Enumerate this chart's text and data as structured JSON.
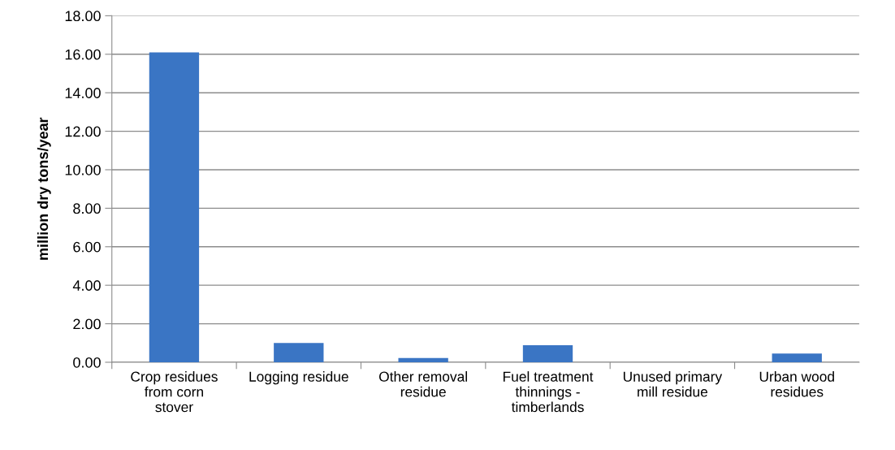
{
  "chart_data": {
    "type": "bar",
    "ylabel": "million dry tons/year",
    "categories": [
      "Crop residues from corn stover",
      "Logging residue",
      "Other removal residue",
      "Fuel treatment thinnings - timberlands",
      "Unused primary mill residue",
      "Urban wood residues"
    ],
    "values": [
      16.1,
      1.0,
      0.22,
      0.88,
      0.0,
      0.45
    ],
    "color": "#3a75c4",
    "ylim": [
      0,
      18
    ],
    "yticks": [
      {
        "value": 0,
        "label": "0.00"
      },
      {
        "value": 2,
        "label": "2.00"
      },
      {
        "value": 4,
        "label": "4.00"
      },
      {
        "value": 6,
        "label": "6.00"
      },
      {
        "value": 8,
        "label": "8.00"
      },
      {
        "value": 10,
        "label": "10.00"
      },
      {
        "value": 12,
        "label": "12.00"
      },
      {
        "value": 14,
        "label": "14.00"
      },
      {
        "value": 16,
        "label": "16.00"
      },
      {
        "value": 18,
        "label": "18.00"
      }
    ],
    "grid": "y",
    "legend": false
  }
}
